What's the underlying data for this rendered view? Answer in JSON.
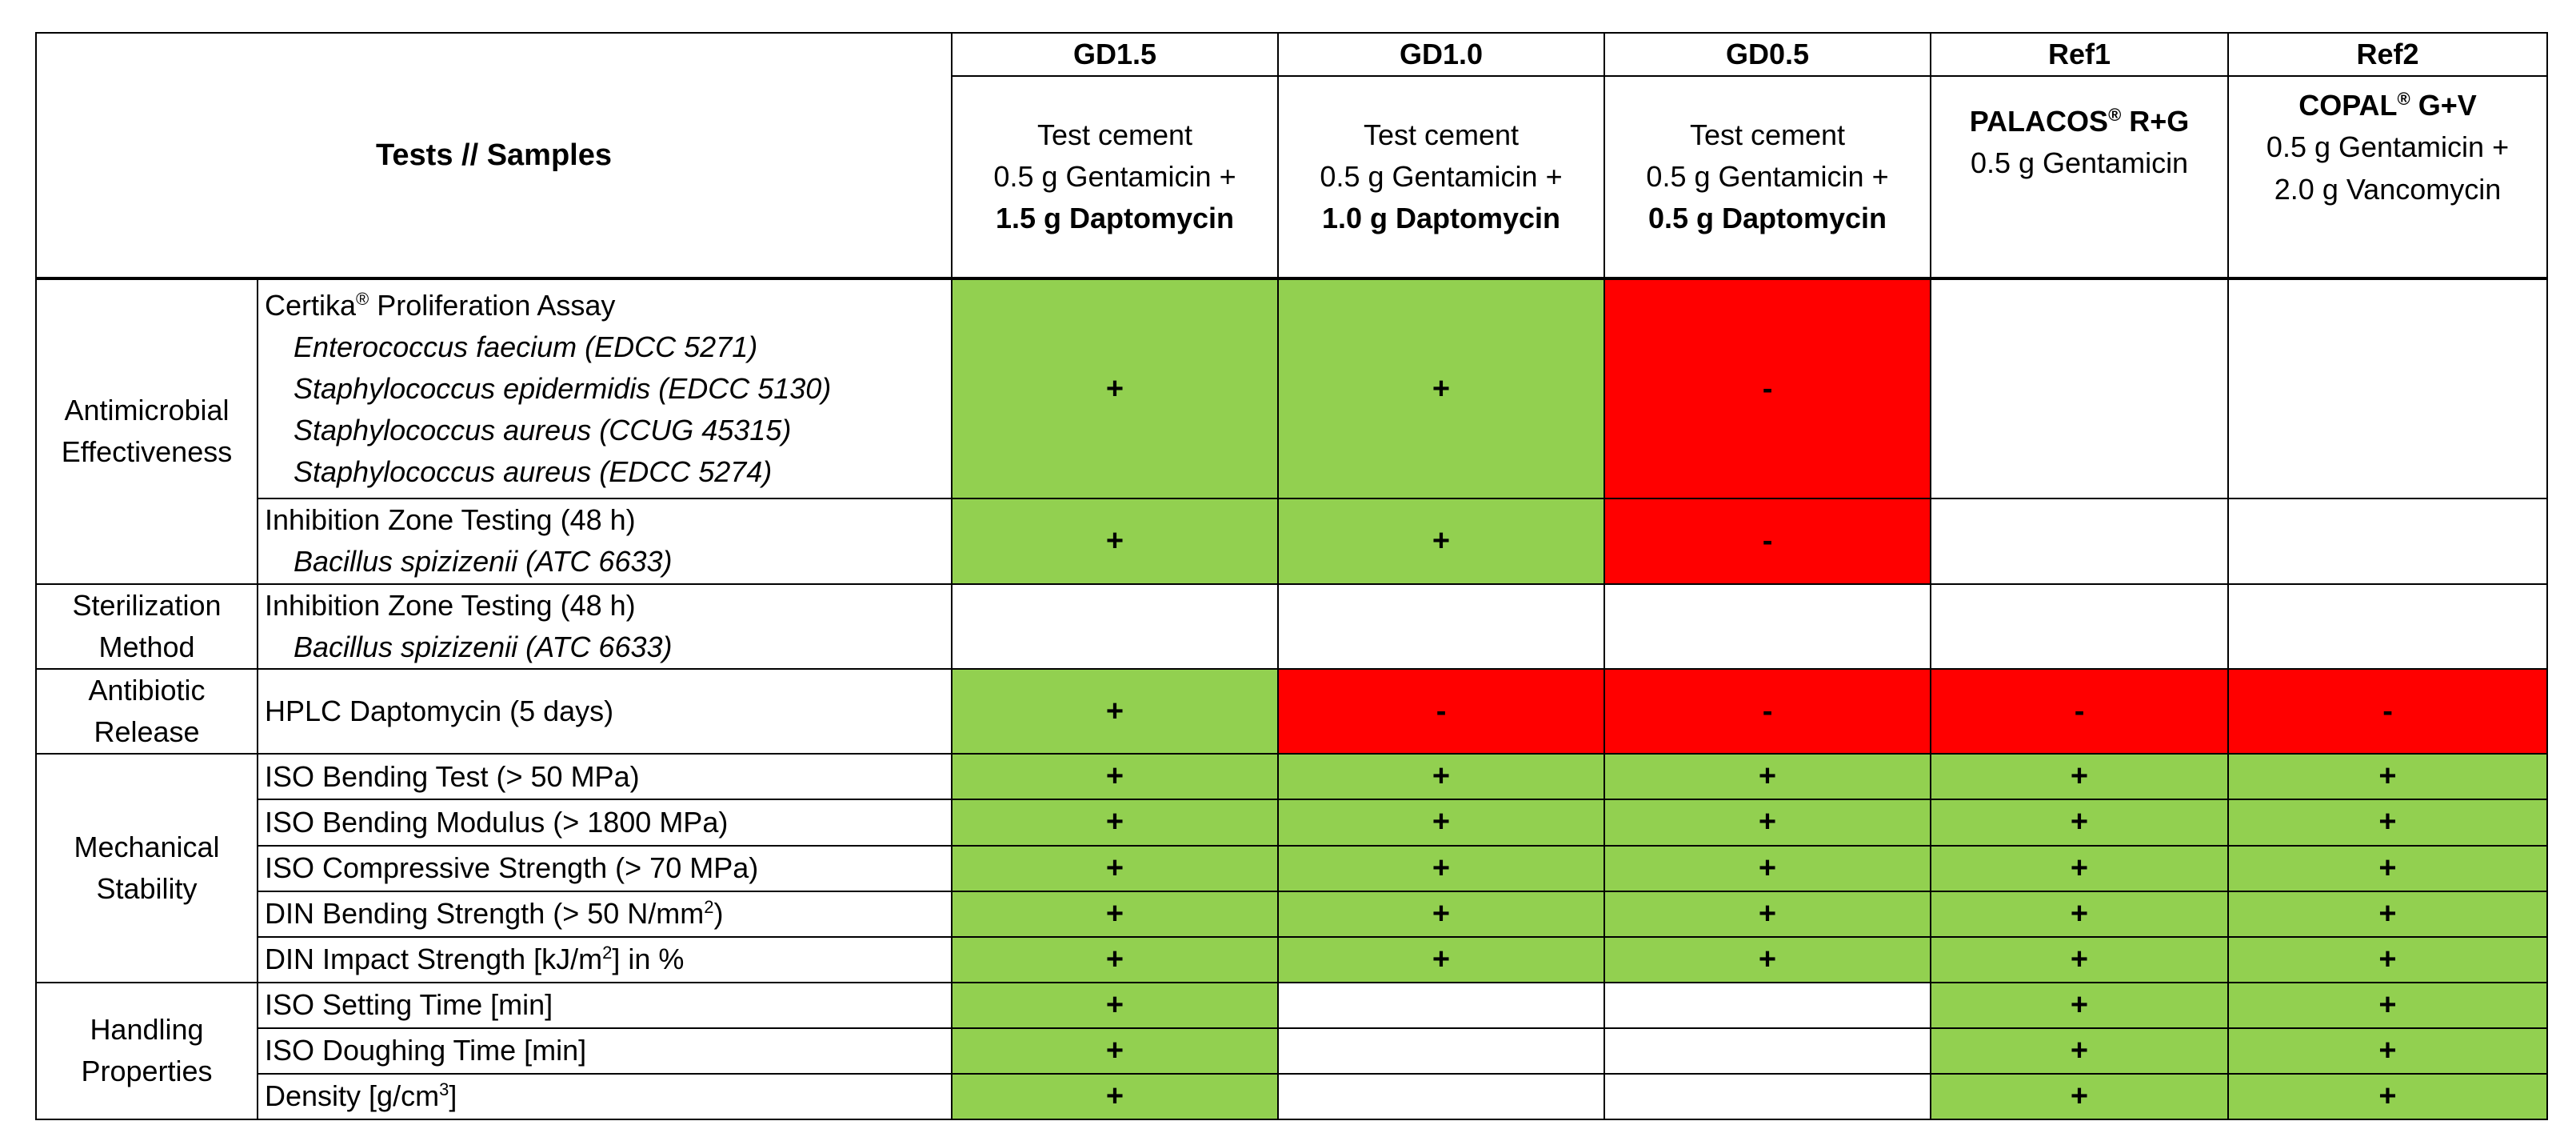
{
  "header": {
    "corner": "Tests // Samples",
    "columns": [
      {
        "code": "GD1.5",
        "line1": "Test cement",
        "line2": "0.5 g Gentamicin +",
        "line3": "1.5 g Daptomycin"
      },
      {
        "code": "GD1.0",
        "line1": "Test cement",
        "line2": "0.5 g Gentamicin +",
        "line3": "1.0 g Daptomycin"
      },
      {
        "code": "GD0.5",
        "line1": "Test cement",
        "line2": "0.5 g Gentamicin +",
        "line3": "0.5 g Daptomycin"
      },
      {
        "code": "Ref1",
        "brand": "PALACOS",
        "reg": "®",
        "brand_suffix": " R+G",
        "line2": "0.5 g Gentamicin"
      },
      {
        "code": "Ref2",
        "brand": "COPAL",
        "reg": "®",
        "brand_suffix": " G+V",
        "line2": "0.5 g Gentamicin +",
        "line3": "2.0 g Vancomycin"
      }
    ]
  },
  "categories": {
    "antimicrobial": [
      "Antimicrobial",
      "Effectiveness"
    ],
    "sterilization": [
      "Sterilization",
      "Method"
    ],
    "release": [
      "Antibiotic",
      "Release"
    ],
    "mechanical": [
      "Mechanical",
      "Stability"
    ],
    "handling": [
      "Handling",
      "Properties"
    ]
  },
  "tests": {
    "certika": {
      "name": "Certika",
      "reg": "®",
      "suffix": " Proliferation Assay",
      "subs": [
        "Enterococcus faecium (EDCC 5271)",
        "Staphylococcus epidermidis (EDCC 5130)",
        "Staphylococcus aureus (CCUG 45315)",
        "Staphylococcus aureus (EDCC 5274)"
      ]
    },
    "izt1": {
      "name": "Inhibition Zone Testing (48 h)",
      "sub": "Bacillus spizizenii (ATC 6633)"
    },
    "izt2": {
      "name": "Inhibition Zone Testing (48 h)",
      "sub": "Bacillus spizizenii (ATC 6633)"
    },
    "hplc": "HPLC Daptomycin (5 days)",
    "iso_bend": "ISO Bending Test (> 50 MPa)",
    "iso_mod": "ISO Bending Modulus (> 1800 MPa)",
    "iso_comp": "ISO Compressive Strength (> 70 MPa)",
    "din_bend": {
      "pre": "DIN Bending Strength (> 50 N/mm",
      "sup": "2",
      "post": ")"
    },
    "din_impact": {
      "pre": "DIN Impact Strength [kJ/m",
      "sup": "2",
      "post": "] in %"
    },
    "iso_set": "ISO Setting Time [min]",
    "iso_dough": "ISO Doughing Time [min]",
    "density": {
      "pre": "Density [g/cm",
      "sup": "3",
      "post": "]"
    }
  },
  "results": {
    "certika": [
      "+",
      "+",
      "-",
      "",
      ""
    ],
    "izt1": [
      "+",
      "+",
      "-",
      "",
      ""
    ],
    "izt2": [
      "",
      "",
      "",
      "",
      ""
    ],
    "hplc": [
      "+",
      "-",
      "-",
      "-",
      "-"
    ],
    "iso_bend": [
      "+",
      "+",
      "+",
      "+",
      "+"
    ],
    "iso_mod": [
      "+",
      "+",
      "+",
      "+",
      "+"
    ],
    "iso_comp": [
      "+",
      "+",
      "+",
      "+",
      "+"
    ],
    "din_bend": [
      "+",
      "+",
      "+",
      "+",
      "+"
    ],
    "din_impact": [
      "+",
      "+",
      "+",
      "+",
      "+"
    ],
    "iso_set": [
      "+",
      "",
      "",
      "+",
      "+"
    ],
    "iso_dough": [
      "+",
      "",
      "",
      "+",
      "+"
    ],
    "density": [
      "+",
      "",
      "",
      "+",
      "+"
    ]
  },
  "colors": {
    "pass": "#92d050",
    "fail": "#ff0000",
    "none": "#ffffff"
  }
}
